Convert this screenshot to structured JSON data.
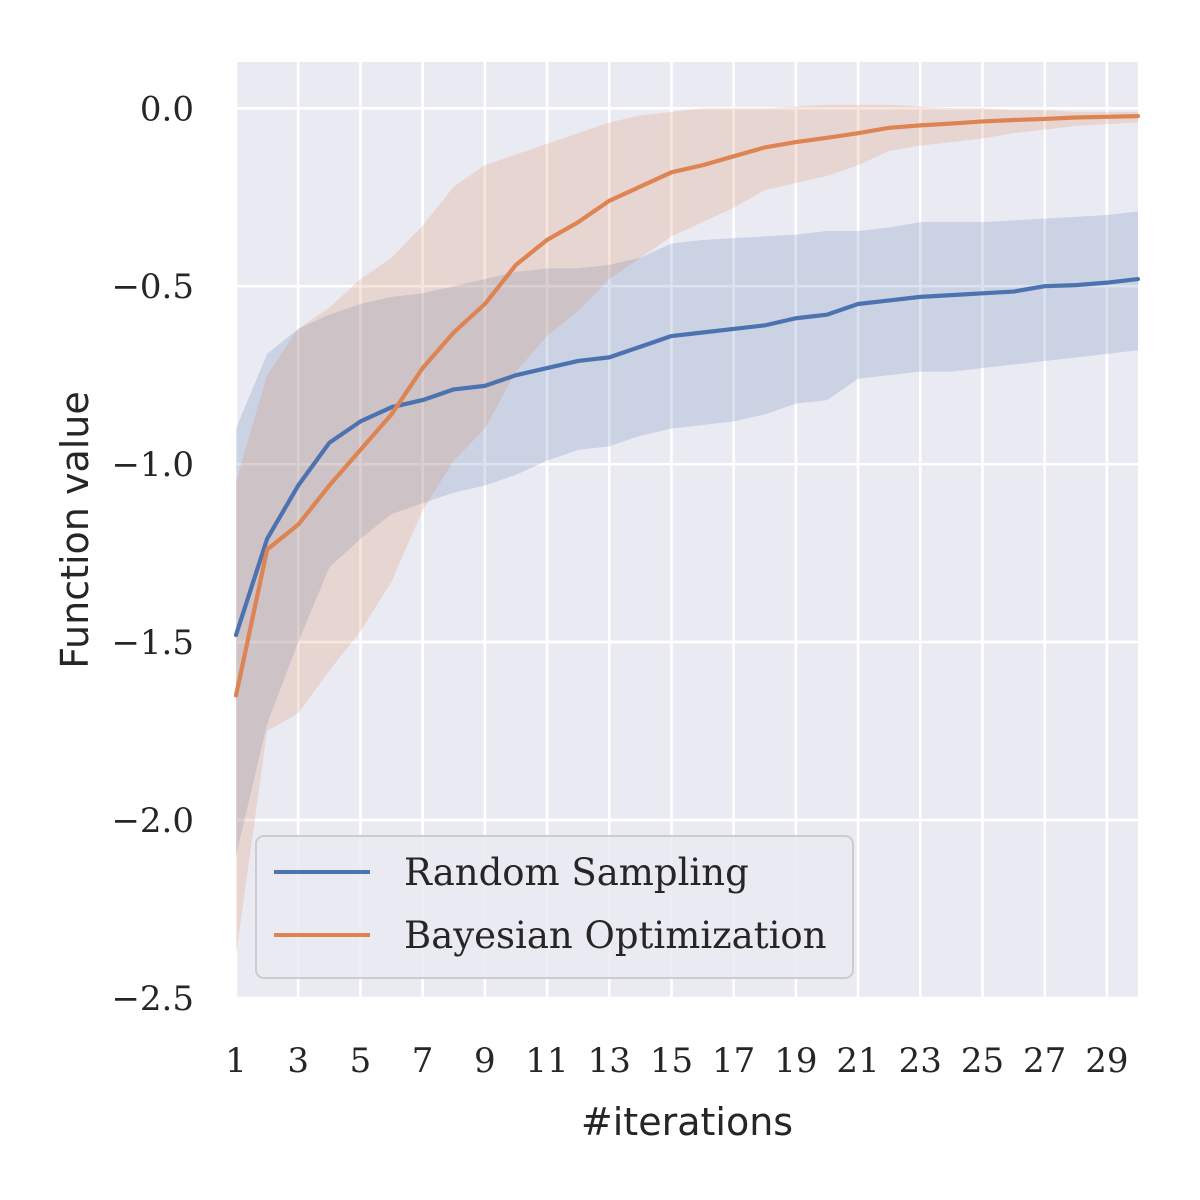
{
  "chart_data": {
    "type": "line",
    "xlabel": "#iterations",
    "ylabel": "Function value",
    "xlim": [
      1,
      30
    ],
    "ylim": [
      -2.5,
      0.13
    ],
    "xticks": [
      1,
      3,
      5,
      7,
      9,
      11,
      13,
      15,
      17,
      19,
      21,
      23,
      25,
      27,
      29
    ],
    "xtick_labels": [
      "1",
      "3",
      "5",
      "7",
      "9",
      "11",
      "13",
      "15",
      "17",
      "19",
      "21",
      "23",
      "25",
      "27",
      "29"
    ],
    "yticks": [
      0.0,
      -0.5,
      -1.0,
      -1.5,
      -2.0,
      -2.5
    ],
    "ytick_labels": [
      "0.0",
      "−0.5",
      "−1.0",
      "−1.5",
      "−2.0",
      "−2.5"
    ],
    "grid": true,
    "legend_position": "lower-left",
    "x": [
      1,
      2,
      3,
      4,
      5,
      6,
      7,
      8,
      9,
      10,
      11,
      12,
      13,
      14,
      15,
      16,
      17,
      18,
      19,
      20,
      21,
      22,
      23,
      24,
      25,
      26,
      27,
      28,
      29,
      30
    ],
    "series": [
      {
        "name": "Random Sampling",
        "color": "#4c72b0",
        "values": [
          -1.48,
          -1.21,
          -1.06,
          -0.94,
          -0.88,
          -0.84,
          -0.82,
          -0.79,
          -0.78,
          -0.75,
          -0.73,
          -0.71,
          -0.7,
          -0.67,
          -0.64,
          -0.63,
          -0.62,
          -0.61,
          -0.59,
          -0.58,
          -0.55,
          -0.54,
          -0.53,
          -0.525,
          -0.52,
          -0.515,
          -0.5,
          -0.497,
          -0.49,
          -0.48
        ],
        "upper": [
          -0.9,
          -0.69,
          -0.62,
          -0.58,
          -0.55,
          -0.53,
          -0.52,
          -0.5,
          -0.48,
          -0.46,
          -0.45,
          -0.45,
          -0.44,
          -0.42,
          -0.38,
          -0.37,
          -0.365,
          -0.36,
          -0.355,
          -0.345,
          -0.345,
          -0.335,
          -0.32,
          -0.32,
          -0.32,
          -0.315,
          -0.31,
          -0.305,
          -0.3,
          -0.29
        ],
        "lower": [
          -2.1,
          -1.73,
          -1.5,
          -1.29,
          -1.21,
          -1.14,
          -1.11,
          -1.08,
          -1.06,
          -1.03,
          -0.99,
          -0.96,
          -0.95,
          -0.92,
          -0.9,
          -0.89,
          -0.88,
          -0.86,
          -0.83,
          -0.82,
          -0.76,
          -0.75,
          -0.74,
          -0.74,
          -0.73,
          -0.72,
          -0.71,
          -0.7,
          -0.69,
          -0.68
        ]
      },
      {
        "name": "Bayesian Optimization",
        "color": "#dd8452",
        "values": [
          -1.65,
          -1.24,
          -1.17,
          -1.06,
          -0.96,
          -0.86,
          -0.73,
          -0.63,
          -0.55,
          -0.44,
          -0.37,
          -0.32,
          -0.26,
          -0.22,
          -0.18,
          -0.16,
          -0.135,
          -0.11,
          -0.095,
          -0.083,
          -0.07,
          -0.055,
          -0.048,
          -0.043,
          -0.037,
          -0.033,
          -0.03,
          -0.026,
          -0.024,
          -0.022
        ],
        "upper": [
          -1.05,
          -0.75,
          -0.62,
          -0.56,
          -0.48,
          -0.42,
          -0.33,
          -0.22,
          -0.16,
          -0.13,
          -0.1,
          -0.07,
          -0.04,
          -0.02,
          -0.01,
          0.0,
          0.0,
          0.0,
          0.005,
          0.01,
          0.01,
          0.01,
          0.005,
          0.0,
          0.0,
          -0.005,
          -0.005,
          -0.01,
          -0.01,
          -0.01
        ],
        "lower": [
          -2.38,
          -1.75,
          -1.7,
          -1.58,
          -1.47,
          -1.33,
          -1.13,
          -0.99,
          -0.9,
          -0.74,
          -0.64,
          -0.57,
          -0.48,
          -0.42,
          -0.36,
          -0.32,
          -0.28,
          -0.23,
          -0.21,
          -0.19,
          -0.16,
          -0.12,
          -0.105,
          -0.095,
          -0.085,
          -0.07,
          -0.06,
          -0.05,
          -0.045,
          -0.04
        ]
      }
    ]
  }
}
